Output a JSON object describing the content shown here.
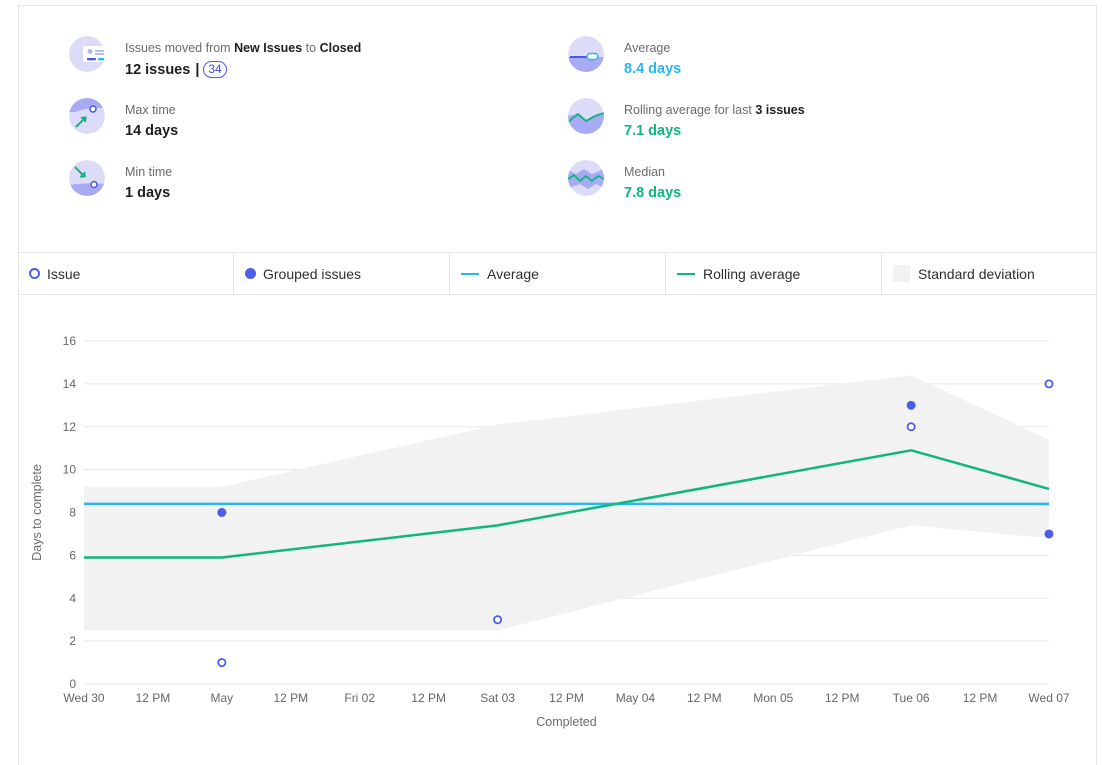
{
  "stats": {
    "moved": {
      "label_prefix": "Issues moved from",
      "from": "New Issues",
      "to_word": "to",
      "to": "Closed",
      "value": "12 issues",
      "separator": "|",
      "badge": "34"
    },
    "max": {
      "label": "Max time",
      "value": "14 days"
    },
    "min": {
      "label": "Min time",
      "value": "1 days"
    },
    "average": {
      "label": "Average",
      "value": "8.4 days"
    },
    "rolling": {
      "label_prefix": "Rolling average for last",
      "count": "3 issues",
      "value": "7.1 days"
    },
    "median": {
      "label": "Median",
      "value": "7.8 days"
    }
  },
  "legend": {
    "issue": "Issue",
    "grouped": "Grouped issues",
    "average": "Average",
    "rolling": "Rolling average",
    "std": "Standard deviation"
  },
  "colors": {
    "issue": "#4b5ee8",
    "average": "#2ab7ee",
    "rolling": "#11b580",
    "std_band": "#f2f2f2",
    "grid": "#e8e8e8"
  },
  "chart_data": {
    "type": "scatter",
    "xlabel": "Completed",
    "ylabel": "Days to complete",
    "ylim": [
      0,
      16
    ],
    "yticks": [
      0,
      2,
      4,
      6,
      8,
      10,
      12,
      14,
      16
    ],
    "xlim": [
      0,
      7
    ],
    "xtick_positions": [
      0,
      0.5,
      1,
      1.5,
      2,
      2.5,
      3,
      3.5,
      4,
      4.5,
      5,
      5.5,
      6,
      6.5,
      7
    ],
    "xtick_labels": [
      "Wed 30",
      "12 PM",
      "May",
      "12 PM",
      "Fri 02",
      "12 PM",
      "Sat 03",
      "12 PM",
      "May 04",
      "12 PM",
      "Mon 05",
      "12 PM",
      "Tue 06",
      "12 PM",
      "Wed 07"
    ],
    "issues": [
      {
        "x": 1,
        "y": 1
      },
      {
        "x": 3,
        "y": 3
      },
      {
        "x": 6,
        "y": 12
      },
      {
        "x": 7,
        "y": 14
      }
    ],
    "grouped_issues": [
      {
        "x": 1,
        "y": 8
      },
      {
        "x": 6,
        "y": 13
      },
      {
        "x": 7,
        "y": 7
      }
    ],
    "average": 8.4,
    "rolling_average": [
      {
        "x": 0,
        "y": 5.9
      },
      {
        "x": 1,
        "y": 5.9
      },
      {
        "x": 3,
        "y": 7.4
      },
      {
        "x": 6,
        "y": 10.9
      },
      {
        "x": 7,
        "y": 9.1
      }
    ],
    "std_upper": [
      {
        "x": 0,
        "y": 9.2
      },
      {
        "x": 1,
        "y": 9.2
      },
      {
        "x": 3,
        "y": 12.1
      },
      {
        "x": 6,
        "y": 14.4
      },
      {
        "x": 7,
        "y": 11.4
      }
    ],
    "std_lower": [
      {
        "x": 0,
        "y": 2.5
      },
      {
        "x": 1,
        "y": 2.5
      },
      {
        "x": 3,
        "y": 2.5
      },
      {
        "x": 6,
        "y": 7.4
      },
      {
        "x": 7,
        "y": 6.8
      }
    ],
    "grid": true,
    "legend_position": "top"
  }
}
